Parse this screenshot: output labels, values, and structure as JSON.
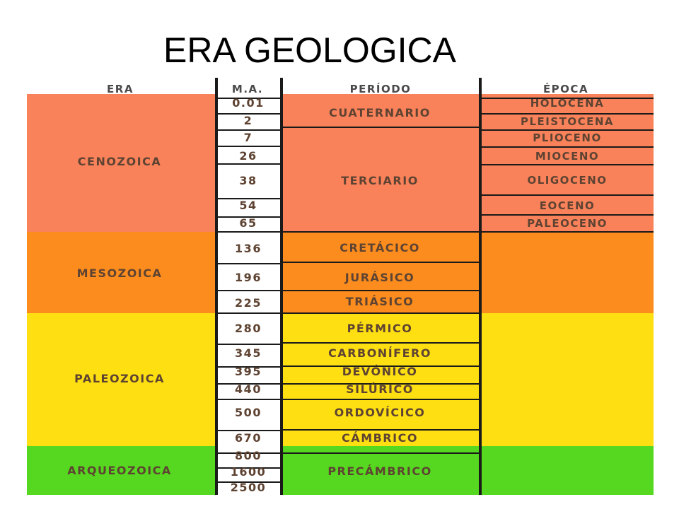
{
  "title": "ERA GEOLOGICA",
  "headers": {
    "era": "ERA",
    "ma": "M.A.",
    "periodo": "PERÍODO",
    "epoca": "ÉPOCA"
  },
  "colors": {
    "cenozoica": "#f9825a",
    "mesozoica": "#fb8c1d",
    "paleozoica": "#fddf12",
    "arqueozoica": "#55d81f",
    "header": "#ffffff",
    "ma_column": "#ffffff",
    "lines": "#1a1a1a"
  },
  "eras": [
    {
      "name": "CENOZOICA",
      "color": "#f9825a"
    },
    {
      "name": "MESOZOICA",
      "color": "#fb8c1d"
    },
    {
      "name": "PALEOZOICA",
      "color": "#fddf12"
    },
    {
      "name": "ARQUEOZOICA",
      "color": "#55d81f"
    }
  ],
  "ma_values": [
    "0.01",
    "2",
    "7",
    "26",
    "38",
    "54",
    "65",
    "136",
    "196",
    "225",
    "280",
    "345",
    "395",
    "440",
    "500",
    "670",
    "800",
    "1600",
    "2500"
  ],
  "periods": [
    "CUATERNARIO",
    "TERCIARIO",
    "CRETÁCICO",
    "JURÁSICO",
    "TRIÁSICO",
    "PÉRMICO",
    "CARBONÍFERO",
    "DEVÓNICO",
    "SILÚRICO",
    "ORDOVÍCICO",
    "CÁMBRICO",
    "PRECÁMBRICO"
  ],
  "epochs": [
    "HOLOCENA",
    "PLEISTOCENA",
    "PLIOCENO",
    "MIOCENO",
    "OLIGOCENO",
    "EOCENO",
    "PALEOCENO"
  ]
}
